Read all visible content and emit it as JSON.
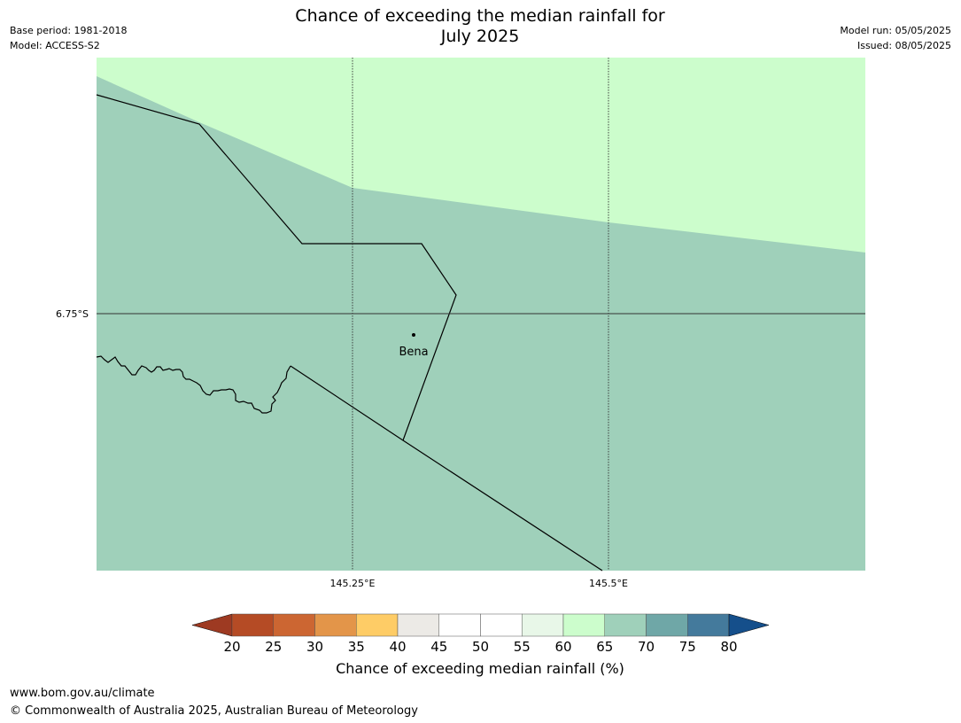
{
  "title": {
    "line1": "Chance of exceeding the median rainfall for",
    "line2": "July 2025"
  },
  "meta_left": {
    "base_period": "Base period: 1981-2018",
    "model": "Model: ACCESS-S2"
  },
  "meta_right": {
    "model_run": "Model run: 05/05/2025",
    "issued": "Issued: 08/05/2025"
  },
  "map": {
    "lat_labels": [
      "6.75°S"
    ],
    "lon_labels": [
      "145.25°E",
      "145.5°E"
    ],
    "place": {
      "name": "Bena"
    },
    "colors": {
      "band_60_65": "#ccfdcc",
      "band_65_70": "#9fd0ba",
      "boundary": "#000000",
      "gridline": "#333333"
    }
  },
  "colorbar": {
    "title": "Chance of exceeding median rainfall (%)",
    "ticks": [
      "20",
      "25",
      "30",
      "35",
      "40",
      "45",
      "50",
      "55",
      "60",
      "65",
      "70",
      "75",
      "80"
    ],
    "colors": [
      "#9e3a22",
      "#b54b25",
      "#cc6632",
      "#e39549",
      "#fecc66",
      "#eceae6",
      "#ffffff",
      "#ffffff",
      "#e8f7e8",
      "#ccfdcc",
      "#9fd0ba",
      "#6fa7a7",
      "#447a9c",
      "#154f8b"
    ]
  },
  "footer": {
    "url": "www.bom.gov.au/climate",
    "copyright": "© Commonwealth of Australia 2025, Australian Bureau of Meteorology"
  }
}
